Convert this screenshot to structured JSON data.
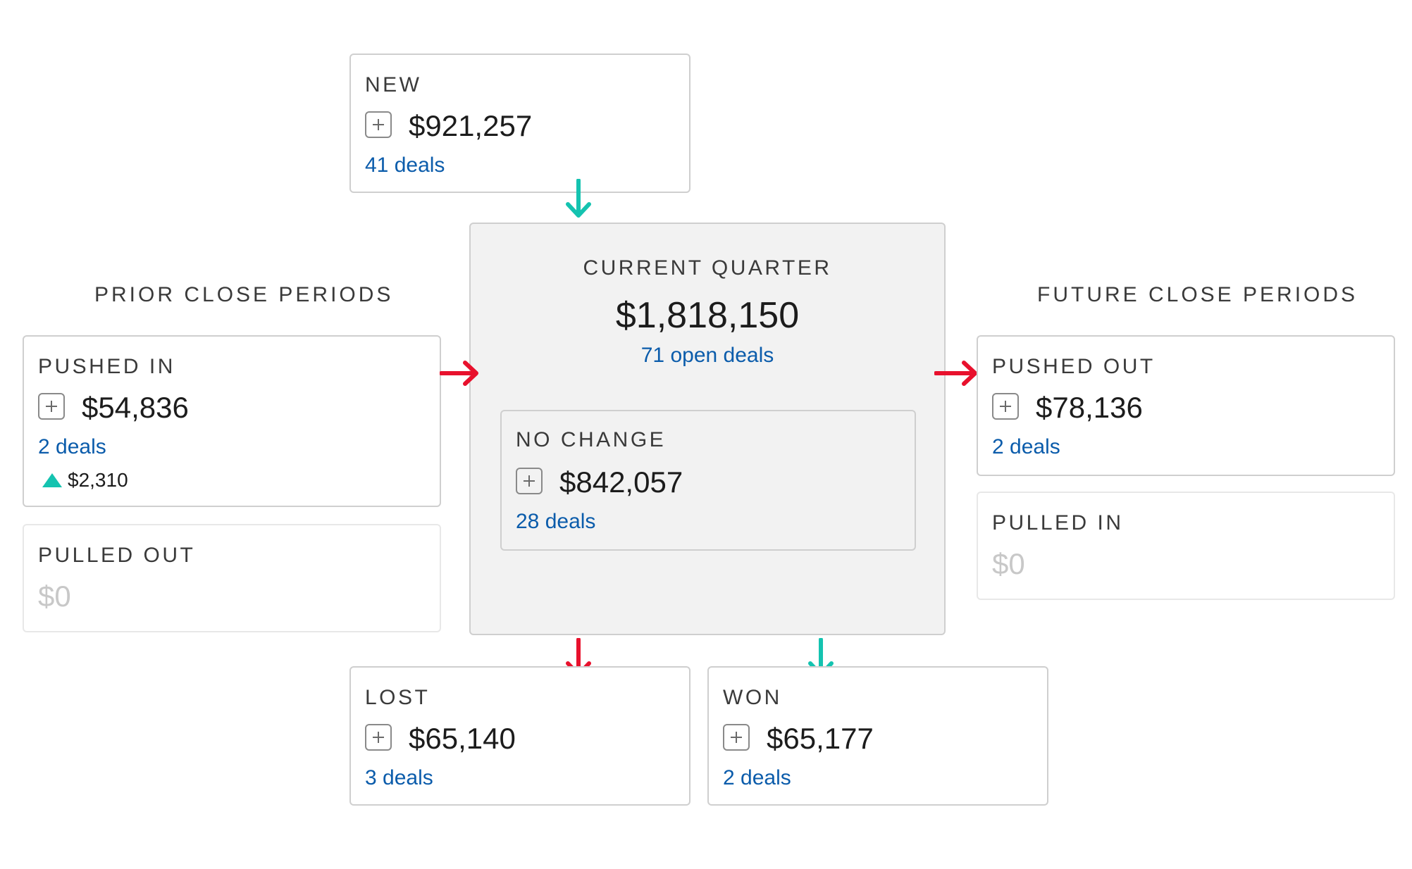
{
  "sections": {
    "prior_title": "PRIOR CLOSE PERIODS",
    "future_title": "FUTURE CLOSE PERIODS"
  },
  "cards": {
    "new": {
      "label": "NEW",
      "amount": "$921,257",
      "deals": "41 deals"
    },
    "current": {
      "label": "CURRENT QUARTER",
      "amount": "$1,818,150",
      "deals": "71 open deals"
    },
    "no_change": {
      "label": "NO CHANGE",
      "amount": "$842,057",
      "deals": "28 deals"
    },
    "pushed_in": {
      "label": "PUSHED IN",
      "amount": "$54,836",
      "deals": "2 deals",
      "change": "$2,310",
      "change_direction": "up"
    },
    "pulled_out": {
      "label": "PULLED OUT",
      "amount": "$0"
    },
    "pushed_out": {
      "label": "PUSHED OUT",
      "amount": "$78,136",
      "deals": "2 deals"
    },
    "pulled_in": {
      "label": "PULLED IN",
      "amount": "$0"
    },
    "lost": {
      "label": "LOST",
      "amount": "$65,140",
      "deals": "3 deals"
    },
    "won": {
      "label": "WON",
      "amount": "$65,177",
      "deals": "2 deals"
    }
  },
  "colors": {
    "positive_arrow": "#14c3b0",
    "negative_arrow": "#e8112d",
    "link": "#0b5cab",
    "muted_amount": "#c8c8c8"
  },
  "icons": {
    "expand": "plus-square-icon",
    "increase": "triangle-up-icon",
    "flow_in": "arrow-down-icon",
    "flow_right": "arrow-right-icon"
  }
}
